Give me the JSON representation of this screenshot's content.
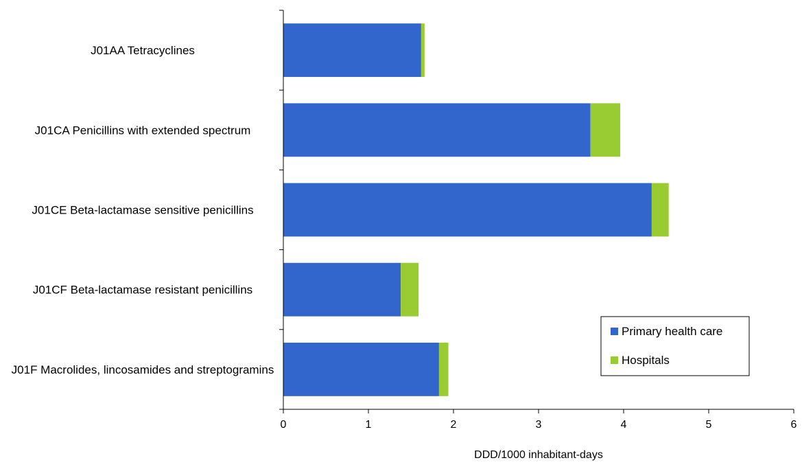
{
  "chart_data": {
    "type": "bar",
    "orientation": "horizontal",
    "stacked": true,
    "categories": [
      "J01AA Tetracyclines",
      "J01CA Penicillins with extended spectrum",
      "J01CE Beta-lactamase sensitive penicillins",
      "J01CF Beta-lactamase resistant penicillins",
      "J01F Macrolides, lincosamides and streptogramins"
    ],
    "series": [
      {
        "name": "Primary health care",
        "color": "#3366cc",
        "values": [
          1.62,
          3.61,
          4.33,
          1.38,
          1.83
        ]
      },
      {
        "name": "Hospitals",
        "color": "#99cc33",
        "values": [
          0.04,
          0.35,
          0.2,
          0.21,
          0.11
        ]
      }
    ],
    "xlabel": "DDD/1000 inhabitant-days",
    "ylabel": "",
    "xlim": [
      0,
      6
    ],
    "xticks": [
      "0",
      "1",
      "2",
      "3",
      "4",
      "5",
      "6"
    ],
    "grid": false,
    "legend_position": "bottom-right"
  }
}
